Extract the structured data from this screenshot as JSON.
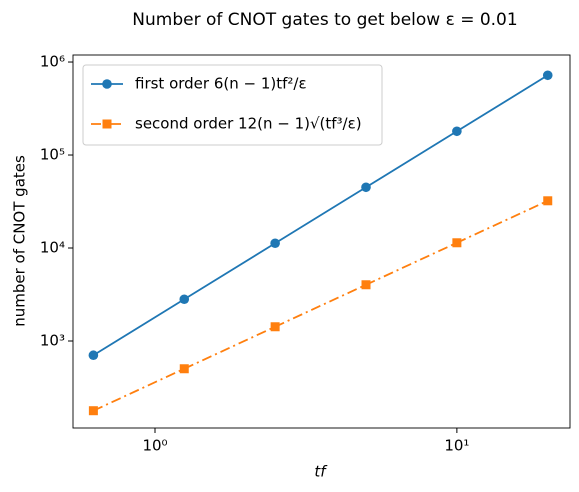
{
  "chart_data": {
    "type": "line",
    "title": "Number of CNOT gates to get below ε = 0.01",
    "xlabel": "tf",
    "ylabel": "number of CNOT gates",
    "x": [
      0.625,
      1.25,
      2.5,
      5,
      10,
      20
    ],
    "series": [
      {
        "name": "first order 6(n − 1)tf²/ε",
        "color": "#1f77b4",
        "linestyle": "solid",
        "marker": "circle",
        "values": [
          703,
          2812,
          11250,
          45000,
          180000,
          720000
        ]
      },
      {
        "name": "second order 12(n − 1)√(tf³/ε)",
        "color": "#ff7f0e",
        "linestyle": "dashdot",
        "marker": "square",
        "values": [
          178,
          503,
          1423,
          4025,
          11384,
          32199
        ]
      }
    ],
    "xscale": "log",
    "yscale": "log",
    "xlim": [
      0.535,
      23.7
    ],
    "ylim": [
      116,
      1190000
    ],
    "xticks": [
      {
        "value": 1,
        "label": "10⁰"
      },
      {
        "value": 10,
        "label": "10¹"
      }
    ],
    "yticks": [
      {
        "value": 1000,
        "label": "10³"
      },
      {
        "value": 10000,
        "label": "10⁴"
      },
      {
        "value": 100000,
        "label": "10⁵"
      },
      {
        "value": 1000000,
        "label": "10⁶"
      }
    ],
    "legend": "upper left"
  }
}
